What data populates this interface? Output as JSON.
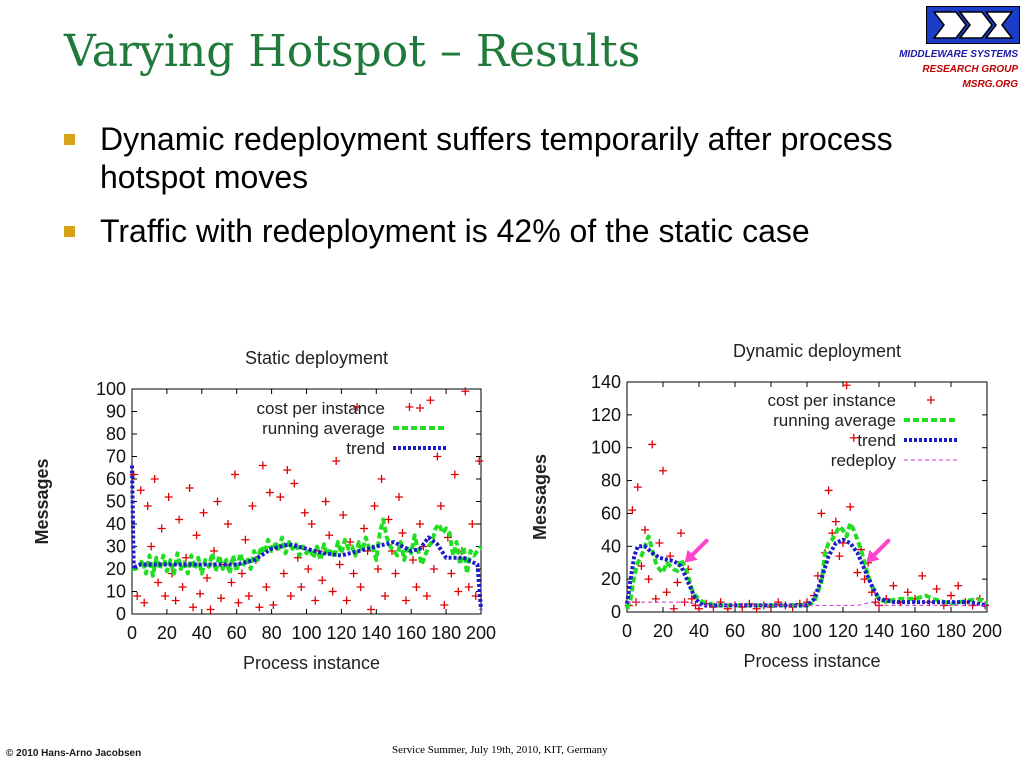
{
  "slide": {
    "title": "Varying Hotspot – Results",
    "logo_lines": [
      "MIDDLEWARE SYSTEMS",
      "RESEARCH GROUP",
      "MSRG.ORG"
    ],
    "bullets": [
      "Dynamic redeployment suffers temporarily after process hotspot moves",
      "Traffic with redeployment is 42% of the static case"
    ],
    "footer_left": "© 2010 Hans-Arno Jacobsen",
    "footer_center": "Service Summer, July 19th, 2010, KIT, Germany"
  },
  "colors": {
    "title": "#1f7a3c",
    "bullet": "#d8a31a",
    "cost": "#e00000",
    "running_average": "#22dd22",
    "trend": "#1c1ccc",
    "redeploy": "#cc33cc",
    "arrow": "#ff44cc"
  },
  "chart_data": [
    {
      "type": "scatter",
      "title": "Static deployment",
      "xlabel": "Process instance",
      "ylabel": "Messages",
      "xlim": [
        0,
        200
      ],
      "ylim": [
        0,
        100
      ],
      "xticks": [
        "0",
        "20",
        "40",
        "60",
        "80",
        "100",
        "120",
        "140",
        "160",
        "180",
        "200"
      ],
      "yticks": [
        "0",
        "10",
        "20",
        "30",
        "40",
        "50",
        "60",
        "70",
        "80",
        "90",
        "100"
      ],
      "legend_position": "top-right",
      "series": [
        {
          "name": "cost per instance",
          "style": "points",
          "color": "#e00000",
          "x": [
            1,
            3,
            5,
            7,
            9,
            11,
            13,
            15,
            17,
            19,
            21,
            23,
            25,
            27,
            29,
            31,
            33,
            35,
            37,
            39,
            41,
            43,
            45,
            47,
            49,
            51,
            53,
            55,
            57,
            59,
            61,
            63,
            65,
            67,
            69,
            71,
            73,
            75,
            77,
            79,
            81,
            83,
            85,
            87,
            89,
            91,
            93,
            95,
            97,
            99,
            101,
            103,
            105,
            107,
            109,
            111,
            113,
            115,
            117,
            119,
            121,
            123,
            125,
            127,
            129,
            131,
            133,
            135,
            137,
            139,
            141,
            143,
            145,
            147,
            149,
            151,
            153,
            155,
            157,
            159,
            161,
            163,
            165,
            167,
            169,
            171,
            173,
            175,
            177,
            179,
            181,
            183,
            185,
            187,
            189,
            191,
            193,
            195,
            197,
            199
          ],
          "y": [
            62,
            8,
            55,
            5,
            48,
            30,
            60,
            14,
            38,
            8,
            52,
            18,
            6,
            42,
            12,
            25,
            56,
            3,
            35,
            9,
            45,
            16,
            2,
            28,
            50,
            7,
            22,
            40,
            14,
            62,
            5,
            18,
            33,
            8,
            48,
            24,
            3,
            66,
            12,
            54,
            4,
            30,
            52,
            18,
            64,
            8,
            58,
            25,
            12,
            45,
            20,
            40,
            6,
            28,
            15,
            50,
            35,
            10,
            68,
            22,
            44,
            6,
            32,
            18,
            92,
            12,
            38,
            28,
            2,
            48,
            20,
            60,
            8,
            42,
            28,
            18,
            52,
            36,
            6,
            92,
            24,
            12,
            40,
            30,
            8,
            95,
            20,
            70,
            48,
            4,
            34,
            18,
            62,
            10,
            28,
            99,
            12,
            40,
            8,
            68
          ]
        },
        {
          "name": "running average",
          "style": "thick-dashed",
          "color": "#22dd22",
          "x": [
            0,
            2,
            4,
            6,
            8,
            10,
            12,
            14,
            16,
            18,
            20,
            22,
            24,
            26,
            28,
            30,
            32,
            34,
            36,
            38,
            40,
            42,
            44,
            46,
            48,
            50,
            52,
            54,
            56,
            58,
            60,
            62,
            64,
            66,
            68,
            70,
            72,
            74,
            76,
            78,
            80,
            82,
            84,
            86,
            88,
            90,
            92,
            94,
            96,
            98,
            100,
            102,
            104,
            106,
            108,
            110,
            112,
            114,
            116,
            118,
            120,
            122,
            124,
            126,
            128,
            130,
            132,
            134,
            136,
            138,
            140,
            142,
            144,
            146,
            148,
            150,
            152,
            154,
            156,
            158,
            160,
            162,
            164,
            166,
            168,
            170,
            172,
            174,
            176,
            178,
            180,
            182,
            184,
            186,
            188,
            190,
            192,
            194,
            196,
            198,
            200
          ],
          "y": [
            20,
            20,
            21,
            24,
            18,
            26,
            17,
            25,
            20,
            26,
            19,
            24,
            18,
            27,
            20,
            23,
            18,
            26,
            20,
            25,
            18,
            24,
            21,
            27,
            19,
            26,
            20,
            24,
            18,
            26,
            19,
            27,
            22,
            25,
            20,
            28,
            24,
            30,
            27,
            33,
            28,
            31,
            29,
            34,
            27,
            32,
            29,
            31,
            26,
            30,
            27,
            29,
            25,
            30,
            24,
            31,
            26,
            29,
            25,
            32,
            27,
            33,
            29,
            30,
            26,
            32,
            28,
            34,
            29,
            30,
            24,
            36,
            42,
            34,
            30,
            28,
            26,
            32,
            24,
            30,
            27,
            35,
            28,
            22,
            26,
            30,
            32,
            38,
            40,
            36,
            38,
            36,
            26,
            32,
            22,
            30,
            18,
            28,
            26,
            28,
            30
          ]
        },
        {
          "name": "trend",
          "style": "dotted",
          "color": "#1c1ccc",
          "x": [
            0,
            1,
            2,
            5,
            10,
            20,
            30,
            40,
            50,
            60,
            70,
            80,
            90,
            100,
            110,
            120,
            130,
            140,
            150,
            160,
            165,
            170,
            175,
            180,
            190,
            198,
            200
          ],
          "y": [
            66,
            20,
            21,
            22,
            22,
            22,
            22,
            22,
            22,
            22,
            24,
            29,
            31,
            29,
            27,
            26,
            28,
            30,
            32,
            28,
            29,
            34,
            31,
            25,
            25,
            22,
            2
          ]
        }
      ]
    },
    {
      "type": "scatter",
      "title": "Dynamic deployment",
      "xlabel": "Process instance",
      "ylabel": "Messages",
      "xlim": [
        0,
        200
      ],
      "ylim": [
        0,
        140
      ],
      "xticks": [
        "0",
        "20",
        "40",
        "60",
        "80",
        "100",
        "120",
        "140",
        "160",
        "180",
        "200"
      ],
      "yticks": [
        "0",
        "20",
        "40",
        "60",
        "80",
        "100",
        "120",
        "140"
      ],
      "legend_position": "top-right",
      "series": [
        {
          "name": "cost per instance",
          "style": "points",
          "color": "#e00000",
          "x": [
            1,
            3,
            5,
            6,
            8,
            10,
            12,
            14,
            16,
            18,
            20,
            22,
            24,
            26,
            28,
            30,
            32,
            34,
            36,
            38,
            40,
            44,
            48,
            52,
            56,
            60,
            64,
            68,
            72,
            76,
            80,
            84,
            88,
            92,
            96,
            100,
            104,
            106,
            108,
            110,
            112,
            114,
            116,
            118,
            120,
            122,
            124,
            126,
            128,
            130,
            132,
            134,
            136,
            138,
            140,
            144,
            148,
            152,
            156,
            160,
            164,
            168,
            172,
            176,
            180,
            184,
            188,
            192,
            196,
            199
          ],
          "y": [
            4,
            62,
            6,
            76,
            28,
            50,
            20,
            102,
            8,
            42,
            86,
            12,
            34,
            2,
            18,
            48,
            6,
            26,
            8,
            4,
            2,
            5,
            3,
            6,
            2,
            4,
            3,
            5,
            2,
            4,
            3,
            6,
            4,
            3,
            5,
            6,
            10,
            22,
            60,
            36,
            74,
            48,
            55,
            34,
            42,
            138,
            64,
            106,
            24,
            38,
            20,
            30,
            12,
            6,
            4,
            8,
            16,
            6,
            12,
            8,
            22,
            6,
            14,
            4,
            10,
            16,
            6,
            4,
            8,
            4
          ]
        },
        {
          "name": "running average",
          "style": "thick-dashed",
          "color": "#22dd22",
          "x": [
            0,
            2,
            4,
            6,
            8,
            10,
            12,
            14,
            16,
            18,
            20,
            22,
            24,
            26,
            28,
            30,
            32,
            34,
            36,
            38,
            40,
            42,
            46,
            50,
            60,
            70,
            80,
            90,
            100,
            104,
            108,
            110,
            112,
            114,
            116,
            118,
            120,
            122,
            124,
            126,
            128,
            130,
            132,
            134,
            136,
            138,
            140,
            144,
            150,
            160,
            166,
            170,
            180,
            190,
            195,
            200
          ],
          "y": [
            2,
            8,
            22,
            30,
            34,
            40,
            46,
            38,
            30,
            26,
            24,
            30,
            28,
            26,
            25,
            32,
            28,
            22,
            14,
            10,
            8,
            6,
            5,
            4,
            4,
            4,
            4,
            4,
            4,
            6,
            18,
            36,
            42,
            44,
            48,
            52,
            50,
            46,
            54,
            50,
            44,
            38,
            30,
            22,
            16,
            12,
            8,
            6,
            8,
            8,
            10,
            8,
            5,
            7,
            8,
            5
          ]
        },
        {
          "name": "trend",
          "style": "dotted",
          "color": "#1c1ccc",
          "x": [
            0,
            2,
            4,
            6,
            10,
            14,
            18,
            22,
            26,
            30,
            34,
            38,
            42,
            50,
            60,
            70,
            80,
            90,
            100,
            104,
            108,
            112,
            116,
            120,
            124,
            128,
            132,
            136,
            140,
            148,
            160,
            170,
            180,
            190,
            200
          ],
          "y": [
            5,
            20,
            34,
            40,
            40,
            36,
            33,
            32,
            31,
            28,
            18,
            8,
            4,
            4,
            4,
            4,
            4,
            4,
            4,
            8,
            20,
            34,
            42,
            44,
            42,
            36,
            26,
            16,
            8,
            6,
            6,
            6,
            6,
            6,
            4
          ]
        },
        {
          "name": "redeploy",
          "style": "thin-dashed",
          "color": "#cc33cc",
          "x": [
            0,
            18,
            34,
            40,
            60,
            100,
            106,
            128,
            136,
            140,
            200
          ],
          "y": [
            6,
            6,
            6,
            4,
            4,
            4,
            4,
            4,
            6,
            4,
            4
          ]
        }
      ],
      "annotations": [
        {
          "type": "arrow",
          "label": "",
          "at": [
            32,
            30
          ]
        },
        {
          "type": "arrow",
          "label": "",
          "at": [
            133,
            30
          ]
        }
      ]
    }
  ]
}
